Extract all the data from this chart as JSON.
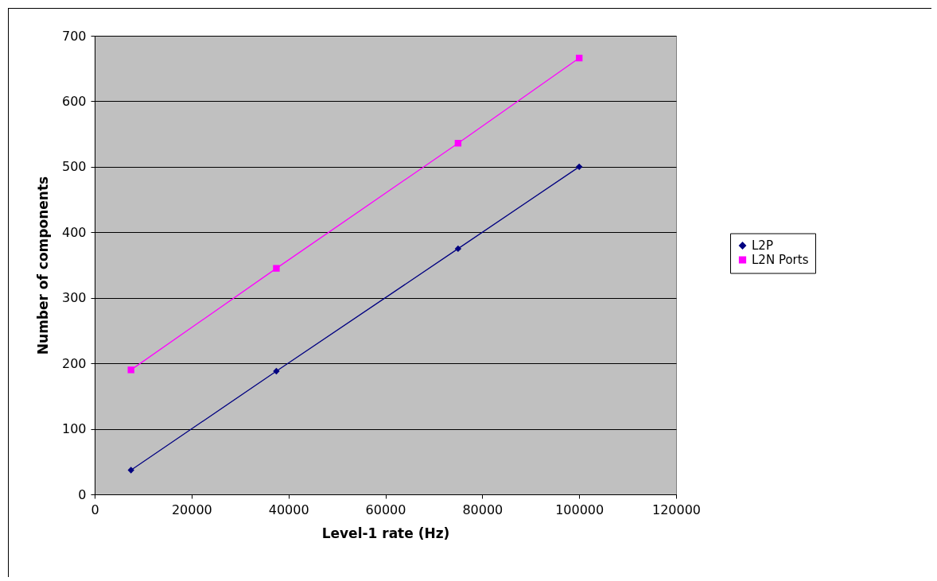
{
  "chart_data": {
    "type": "line",
    "xlabel": "Level-1 rate (Hz)",
    "ylabel": "Number of components",
    "x": [
      7500,
      37500,
      75000,
      100000
    ],
    "series": [
      {
        "name": "L2P",
        "color": "#000080",
        "marker": "diamond",
        "values": [
          37,
          188,
          375,
          500
        ]
      },
      {
        "name": "L2N Ports",
        "color": "#ff00ff",
        "marker": "square",
        "values": [
          190,
          345,
          536,
          666
        ]
      }
    ],
    "xlim": [
      0,
      120000
    ],
    "xticks": [
      0,
      20000,
      40000,
      60000,
      80000,
      100000,
      120000
    ],
    "ylim": [
      0,
      700
    ],
    "yticks": [
      0,
      100,
      200,
      300,
      400,
      500,
      600,
      700
    ],
    "grid": "y",
    "legend": "right"
  }
}
